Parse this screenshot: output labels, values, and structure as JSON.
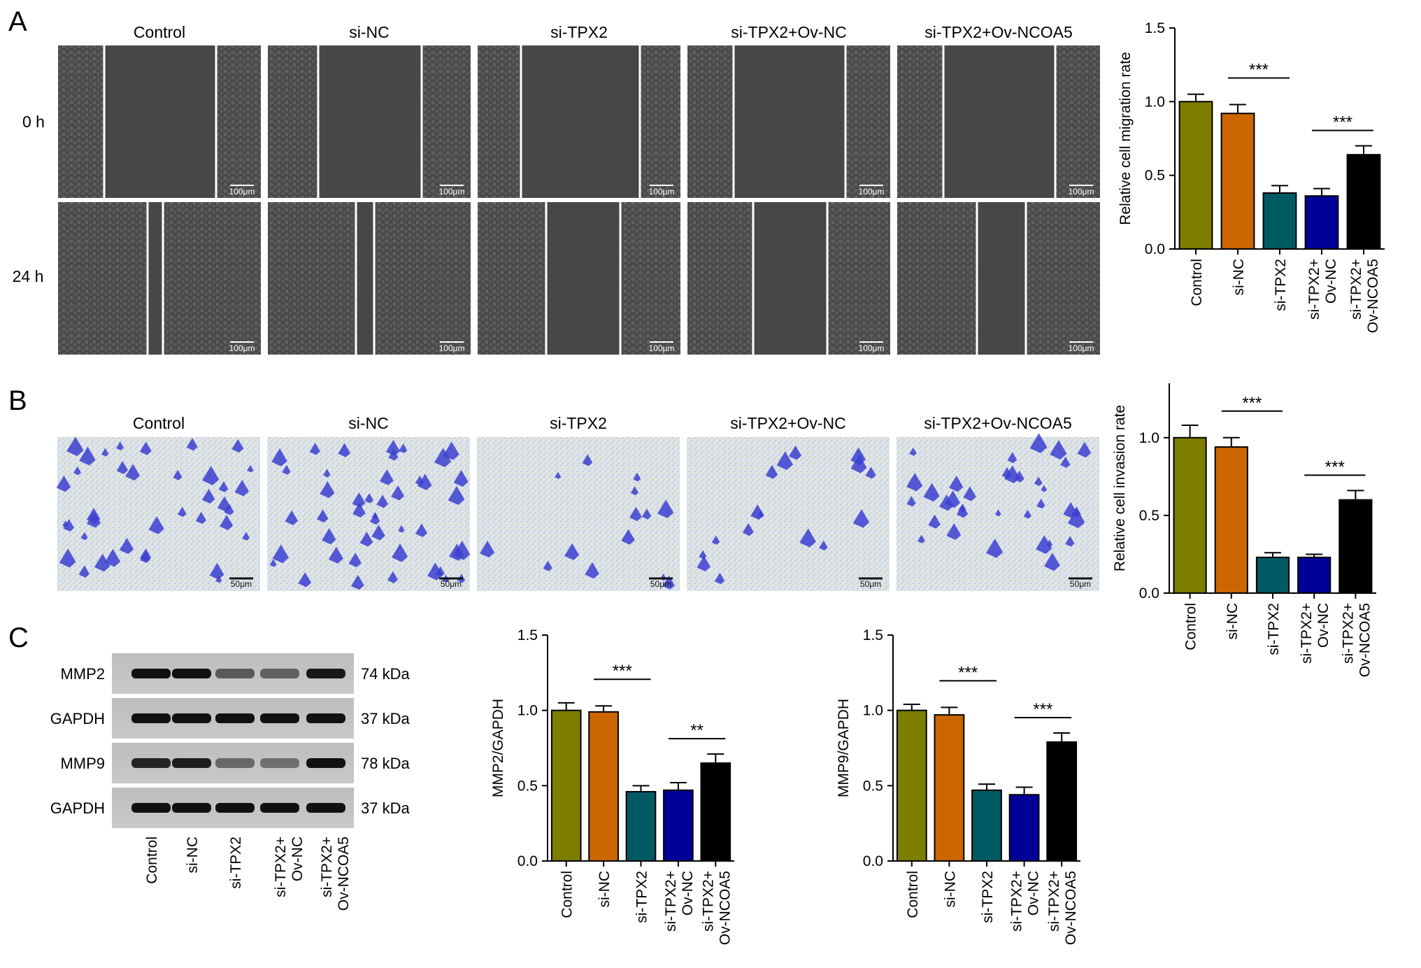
{
  "panels": {
    "A": {
      "letter": "A",
      "columns": [
        "Control",
        "si-NC",
        "si-TPX2",
        "si-TPX2+Ov-NC",
        "si-TPX2+Ov-NCOA5"
      ],
      "rows": [
        "0 h",
        "24 h"
      ],
      "scale_bar": "100μm"
    },
    "B": {
      "letter": "B",
      "columns": [
        "Control",
        "si-NC",
        "si-TPX2",
        "si-TPX2+Ov-NC",
        "si-TPX2+Ov-NCOA5"
      ],
      "scale_bar": "50μm"
    },
    "C": {
      "letter": "C",
      "bands": [
        {
          "label": "MMP2",
          "size": "74 kDa"
        },
        {
          "label": "GAPDH",
          "size": "37 kDa"
        },
        {
          "label": "MMP9",
          "size": "78 kDa"
        },
        {
          "label": "GAPDH",
          "size": "37 kDa"
        }
      ],
      "lanes": [
        "Control",
        "si-NC",
        "si-TPX2",
        "si-TPX2+ Ov-NC",
        "si-TPX2+ Ov-NCOA5"
      ]
    }
  },
  "colors": {
    "Control": "#7d7d00",
    "si-NC": "#cc6600",
    "si-TPX2": "#005a64",
    "si-TPX2+Ov-NC": "#000099",
    "si-TPX2+Ov-NCOA5": "#000000"
  },
  "chart_data": [
    {
      "id": "migration",
      "type": "bar",
      "categories": [
        "Control",
        "si-NC",
        "si-TPX2",
        "si-TPX2+ Ov-NC",
        "si-TPX2+ Ov-NCOA5"
      ],
      "values": [
        1.0,
        0.92,
        0.38,
        0.36,
        0.64
      ],
      "errors": [
        0.05,
        0.06,
        0.05,
        0.05,
        0.06
      ],
      "ylabel": "Relative cell migration rate",
      "ylim": [
        0,
        1.5
      ],
      "yticks": [
        "0.0",
        "0.5",
        "1.0",
        "1.5"
      ],
      "annotations": [
        {
          "from": 1,
          "to": 2,
          "text": "***"
        },
        {
          "from": 3,
          "to": 4,
          "text": "***"
        }
      ]
    },
    {
      "id": "invasion",
      "type": "bar",
      "categories": [
        "Control",
        "si-NC",
        "si-TPX2",
        "si-TPX2+ Ov-NC",
        "si-TPX2+ Ov-NCOA5"
      ],
      "values": [
        1.0,
        0.94,
        0.23,
        0.23,
        0.6
      ],
      "errors": [
        0.08,
        0.06,
        0.03,
        0.02,
        0.06
      ],
      "ylabel": "Relative cell invasion rate",
      "ylim": [
        0,
        1.35
      ],
      "yticks": [
        "0.0",
        "0.5",
        "1.0"
      ],
      "annotations": [
        {
          "from": 1,
          "to": 2,
          "text": "***"
        },
        {
          "from": 3,
          "to": 4,
          "text": "***"
        }
      ]
    },
    {
      "id": "mmp2",
      "type": "bar",
      "categories": [
        "Control",
        "si-NC",
        "si-TPX2",
        "si-TPX2+ Ov-NC",
        "si-TPX2+ Ov-NCOA5"
      ],
      "values": [
        1.0,
        0.99,
        0.46,
        0.47,
        0.65
      ],
      "errors": [
        0.05,
        0.04,
        0.04,
        0.05,
        0.06
      ],
      "ylabel": "MMP2/GAPDH",
      "ylim": [
        0,
        1.5
      ],
      "yticks": [
        "0.0",
        "0.5",
        "1.0",
        "1.5"
      ],
      "annotations": [
        {
          "from": 1,
          "to": 2,
          "text": "***"
        },
        {
          "from": 3,
          "to": 4,
          "text": "**"
        }
      ]
    },
    {
      "id": "mmp9",
      "type": "bar",
      "categories": [
        "Control",
        "si-NC",
        "si-TPX2",
        "si-TPX2+ Ov-NC",
        "si-TPX2+ Ov-NCOA5"
      ],
      "values": [
        1.0,
        0.97,
        0.47,
        0.44,
        0.79
      ],
      "errors": [
        0.04,
        0.05,
        0.04,
        0.05,
        0.06
      ],
      "ylabel": "MMP9/GAPDH",
      "ylim": [
        0,
        1.5
      ],
      "yticks": [
        "0.0",
        "0.5",
        "1.0",
        "1.5"
      ],
      "annotations": [
        {
          "from": 1,
          "to": 2,
          "text": "***"
        },
        {
          "from": 3,
          "to": 4,
          "text": "***"
        }
      ]
    }
  ]
}
